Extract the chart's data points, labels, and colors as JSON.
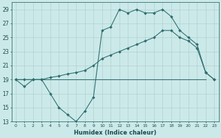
{
  "xlabel": "Humidex (Indice chaleur)",
  "background_color": "#cce9e9",
  "grid_color": "#b0d0d0",
  "line_color": "#2d6e6e",
  "xlim": [
    -0.5,
    23.5
  ],
  "ylim": [
    13,
    30
  ],
  "yticks": [
    13,
    15,
    17,
    19,
    21,
    23,
    25,
    27,
    29
  ],
  "xticks": [
    0,
    1,
    2,
    3,
    4,
    5,
    6,
    7,
    8,
    9,
    10,
    11,
    12,
    13,
    14,
    15,
    16,
    17,
    18,
    19,
    20,
    21,
    22,
    23
  ],
  "line1_x": [
    0,
    1,
    2,
    3,
    4,
    5,
    6,
    7,
    8,
    9,
    10,
    11,
    12,
    13,
    14,
    15,
    16,
    17,
    18,
    19,
    20,
    21,
    22,
    23
  ],
  "line1_y": [
    19,
    18,
    19,
    19,
    17,
    15,
    14,
    13,
    14.5,
    16.5,
    26,
    26.5,
    29,
    28.5,
    29,
    28.5,
    28.5,
    29,
    28,
    26,
    25,
    24,
    20,
    19
  ],
  "line2_x": [
    0,
    22
  ],
  "line2_y": [
    19,
    19
  ],
  "line3_x": [
    0,
    1,
    2,
    3,
    4,
    5,
    6,
    7,
    8,
    9,
    10,
    11,
    12,
    13,
    14,
    15,
    16,
    17,
    18,
    19,
    20,
    21,
    22,
    23
  ],
  "line3_y": [
    19,
    19,
    19,
    19,
    19.3,
    19.5,
    19.8,
    20,
    20.3,
    21,
    22,
    22.5,
    23,
    23.5,
    24,
    24.5,
    25,
    26,
    26,
    25,
    24.5,
    23.5,
    20,
    19
  ]
}
